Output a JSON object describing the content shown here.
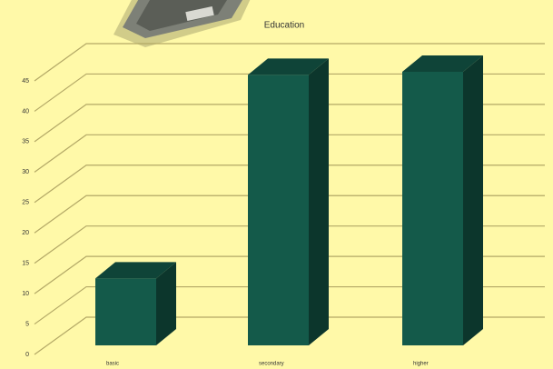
{
  "chart_data": {
    "type": "bar3d",
    "title": "Education",
    "categories": [
      "basic",
      "secondary",
      "higher"
    ],
    "values": [
      11,
      44.5,
      45
    ],
    "color": "#145a4a",
    "ylim": [
      0,
      45
    ],
    "yticks": [
      0,
      5,
      10,
      15,
      20,
      25,
      30,
      35,
      40,
      45
    ],
    "grid": true
  }
}
